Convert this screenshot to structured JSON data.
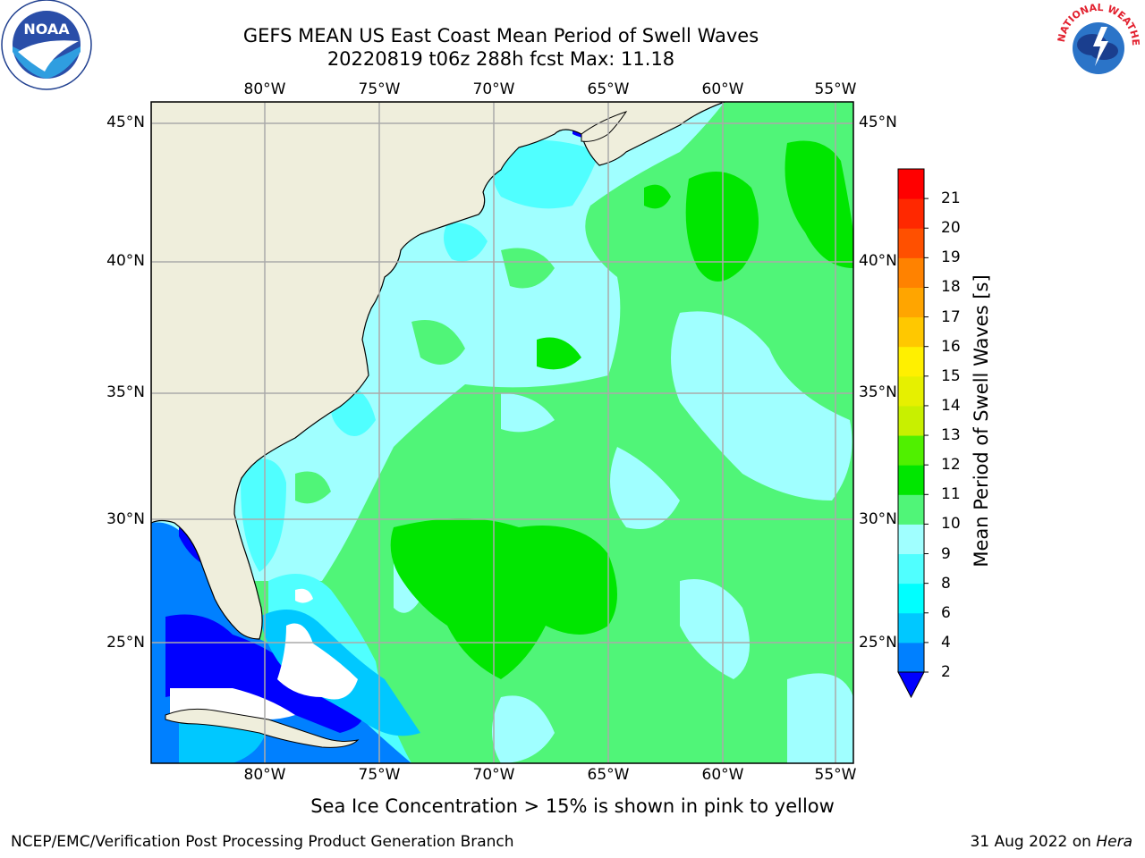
{
  "title": {
    "line1": "GEFS MEAN US East Coast Mean Period of Swell Waves",
    "line2": "20220819 t06z 288h fcst   Max: 11.18"
  },
  "map": {
    "lon_labels": [
      "80°W",
      "75°W",
      "70°W",
      "65°W",
      "60°W",
      "55°W"
    ],
    "lat_labels": [
      "45°N",
      "40°N",
      "35°N",
      "30°N",
      "25°N"
    ],
    "colors": {
      "land": "#EFEEDC",
      "coastline": "#000000",
      "grid": "#AAAAAA",
      "no_data": "#FFFFFF"
    }
  },
  "colorbar": {
    "label": "Mean Period of Swell Waves [s]",
    "ticks": [
      "2",
      "4",
      "6",
      "8",
      "9",
      "10",
      "11",
      "12",
      "13",
      "14",
      "15",
      "16",
      "17",
      "18",
      "19",
      "20",
      "21"
    ],
    "levels": [
      {
        "from": 2,
        "to": 4,
        "color": "#0080FF"
      },
      {
        "from": 4,
        "to": 6,
        "color": "#00C8FF"
      },
      {
        "from": 6,
        "to": 8,
        "color": "#00FFFF"
      },
      {
        "from": 8,
        "to": 9,
        "color": "#50FFFF"
      },
      {
        "from": 9,
        "to": 10,
        "color": "#A0FFFF"
      },
      {
        "from": 10,
        "to": 11,
        "color": "#50F578"
      },
      {
        "from": 11,
        "to": 12,
        "color": "#00E600"
      },
      {
        "from": 12,
        "to": 13,
        "color": "#50F000"
      },
      {
        "from": 13,
        "to": 14,
        "color": "#C8F000"
      },
      {
        "from": 14,
        "to": 15,
        "color": "#E6F000"
      },
      {
        "from": 15,
        "to": 16,
        "color": "#FFF000"
      },
      {
        "from": 16,
        "to": 17,
        "color": "#FFC800"
      },
      {
        "from": 17,
        "to": 18,
        "color": "#FFA500"
      },
      {
        "from": 18,
        "to": 19,
        "color": "#FF8200"
      },
      {
        "from": 19,
        "to": 20,
        "color": "#FF5000"
      },
      {
        "from": 20,
        "to": 21,
        "color": "#FF2800"
      },
      {
        "from": 21,
        "to": 22,
        "color": "#FF0000"
      }
    ],
    "under_color": "#0000FF"
  },
  "footnote": "Sea Ice Concentration > 15% is shown in pink to yellow",
  "credit": "NCEP/EMC/Verification Post Processing Product Generation Branch",
  "date": {
    "text": "31 Aug 2022 on ",
    "host": "Hera"
  },
  "logos": {
    "left": "NOAA",
    "right": "NATIONAL WEATHER SERVICE"
  }
}
